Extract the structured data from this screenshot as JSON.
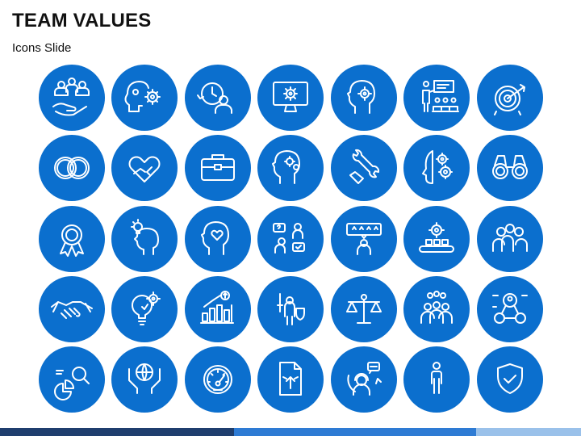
{
  "slide": {
    "title": "TEAM VALUES",
    "subtitle": "Icons Slide"
  },
  "colors": {
    "circle": "#0B6FCE",
    "stroke": "#FFFFFF",
    "bar_dark": "#1F3E6E",
    "bar_mid": "#2E7BD4",
    "bar_light": "#9AC1EA"
  },
  "icons": [
    [
      "teamwork-hand-icon",
      "head-gears-icon",
      "time-management-icon",
      "monitor-gear-icon",
      "head-gear-icon",
      "presentation-audience-icon",
      "target-arrow-icon"
    ],
    [
      "interlocked-rings-icon",
      "heart-hands-icon",
      "briefcase-icon",
      "head-cogs-icon",
      "wrench-hand-icon",
      "half-head-gears-icon",
      "binoculars-icon"
    ],
    [
      "award-ribbon-icon",
      "idea-head-icon",
      "heart-head-icon",
      "question-consult-icon",
      "rating-review-icon",
      "conveyor-gear-icon",
      "team-group-icon"
    ],
    [
      "handshake-icon",
      "bulb-gear-icon",
      "growth-chart-icon",
      "knight-shield-icon",
      "balance-scale-icon",
      "team-leader-icon",
      "network-people-icon"
    ],
    [
      "data-analytics-icon",
      "hands-globe-icon",
      "speedometer-icon",
      "document-growth-icon",
      "customer-support-icon",
      "standing-person-icon",
      "shield-check-icon"
    ]
  ]
}
